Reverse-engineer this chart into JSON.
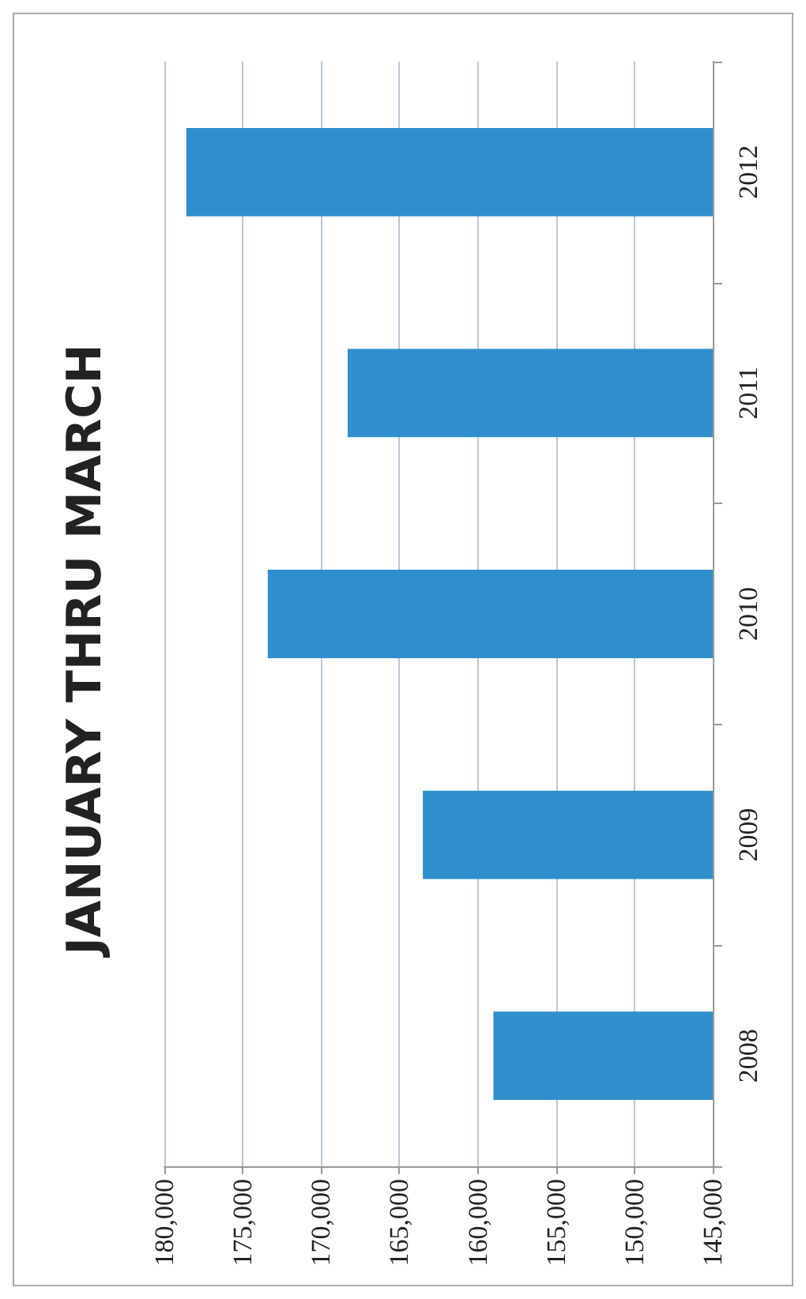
{
  "chart_data": {
    "type": "bar",
    "orientation": "horizontal",
    "title": "JANUARY THRU MARCH",
    "categories": [
      "2012",
      "2011",
      "2010",
      "2009",
      "2008"
    ],
    "values": [
      178600,
      168300,
      173400,
      163500,
      159000
    ],
    "color": "#2e8fcc",
    "xlim": [
      180000,
      145000
    ],
    "xticks": [
      {
        "value": 180000,
        "label": "180,000"
      },
      {
        "value": 175000,
        "label": "175,000"
      },
      {
        "value": 170000,
        "label": "170,000"
      },
      {
        "value": 165000,
        "label": "165,000"
      },
      {
        "value": 160000,
        "label": "160,000"
      },
      {
        "value": 155000,
        "label": "155,000"
      },
      {
        "value": 150000,
        "label": "150,000"
      },
      {
        "value": 145000,
        "label": "145,000"
      }
    ],
    "grid": "x"
  }
}
